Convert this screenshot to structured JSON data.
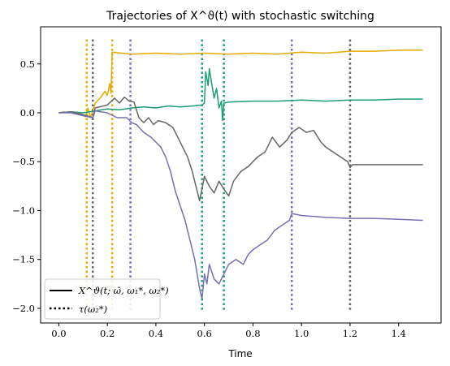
{
  "chart_data": {
    "type": "line",
    "title": "Trajectories of X^ϑ(t) with stochastic switching",
    "xlabel": "Time",
    "ylabel": "",
    "xlim": [
      -0.075,
      1.575
    ],
    "ylim": [
      -2.15,
      0.88
    ],
    "xticks": [
      0.0,
      0.2,
      0.4,
      0.6,
      0.8,
      1.0,
      1.2,
      1.4
    ],
    "xtick_labels": [
      "0.0",
      "0.2",
      "0.4",
      "0.6",
      "0.8",
      "1.0",
      "1.2",
      "1.4"
    ],
    "yticks": [
      0.5,
      0.0,
      -0.5,
      -1.0,
      -1.5,
      -2.0
    ],
    "ytick_labels": [
      "0.5",
      "0.0",
      "−0.5",
      "−1.0",
      "−1.5",
      "−2.0"
    ],
    "grid": false,
    "legend": {
      "placement": "lower-left",
      "entries": [
        {
          "label": "X^ϑ(t; ω̄, ω₁*, ω₂*)",
          "style": "solid"
        },
        {
          "label": "τ(ω₂*)",
          "style": "dotted"
        }
      ]
    },
    "series": [
      {
        "color": "#e6ab02",
        "points": [
          [
            0,
            0
          ],
          [
            0.02,
            0.01
          ],
          [
            0.04,
            0.0
          ],
          [
            0.06,
            0.01
          ],
          [
            0.08,
            0.0
          ],
          [
            0.1,
            -0.02
          ],
          [
            0.11,
            -0.04
          ],
          [
            0.12,
            0.05
          ],
          [
            0.13,
            -0.05
          ],
          [
            0.14,
            0.02
          ],
          [
            0.15,
            0.1
          ],
          [
            0.17,
            0.15
          ],
          [
            0.19,
            0.22
          ],
          [
            0.2,
            0.18
          ],
          [
            0.21,
            0.3
          ],
          [
            0.215,
            0.2
          ],
          [
            0.22,
            0.62
          ],
          [
            0.3,
            0.6
          ],
          [
            0.4,
            0.61
          ],
          [
            0.5,
            0.6
          ],
          [
            0.6,
            0.61
          ],
          [
            0.7,
            0.6
          ],
          [
            0.8,
            0.61
          ],
          [
            0.9,
            0.6
          ],
          [
            1.0,
            0.62
          ],
          [
            1.1,
            0.61
          ],
          [
            1.2,
            0.63
          ],
          [
            1.3,
            0.63
          ],
          [
            1.4,
            0.64
          ],
          [
            1.5,
            0.64
          ]
        ]
      },
      {
        "color": "#1b9e77",
        "points": [
          [
            0,
            0
          ],
          [
            0.05,
            0.01
          ],
          [
            0.1,
            0.0
          ],
          [
            0.15,
            0.02
          ],
          [
            0.2,
            0.04
          ],
          [
            0.25,
            0.03
          ],
          [
            0.3,
            0.05
          ],
          [
            0.35,
            0.06
          ],
          [
            0.4,
            0.05
          ],
          [
            0.45,
            0.07
          ],
          [
            0.5,
            0.06
          ],
          [
            0.55,
            0.07
          ],
          [
            0.59,
            0.08
          ],
          [
            0.6,
            0.1
          ],
          [
            0.605,
            0.42
          ],
          [
            0.615,
            0.28
          ],
          [
            0.62,
            0.45
          ],
          [
            0.63,
            0.3
          ],
          [
            0.64,
            0.15
          ],
          [
            0.65,
            0.25
          ],
          [
            0.66,
            0.05
          ],
          [
            0.67,
            0.12
          ],
          [
            0.675,
            -0.08
          ],
          [
            0.68,
            0.1
          ],
          [
            0.7,
            0.11
          ],
          [
            0.8,
            0.12
          ],
          [
            0.9,
            0.12
          ],
          [
            1.0,
            0.13
          ],
          [
            1.1,
            0.12
          ],
          [
            1.2,
            0.13
          ],
          [
            1.3,
            0.13
          ],
          [
            1.4,
            0.14
          ],
          [
            1.5,
            0.14
          ]
        ]
      },
      {
        "color": "#666666",
        "points": [
          [
            0,
            0
          ],
          [
            0.05,
            0.01
          ],
          [
            0.1,
            -0.02
          ],
          [
            0.14,
            -0.05
          ],
          [
            0.15,
            0.05
          ],
          [
            0.2,
            0.08
          ],
          [
            0.23,
            0.15
          ],
          [
            0.25,
            0.1
          ],
          [
            0.27,
            0.16
          ],
          [
            0.29,
            0.12
          ],
          [
            0.31,
            0.11
          ],
          [
            0.33,
            -0.05
          ],
          [
            0.35,
            -0.1
          ],
          [
            0.37,
            -0.05
          ],
          [
            0.39,
            -0.12
          ],
          [
            0.41,
            -0.08
          ],
          [
            0.44,
            -0.1
          ],
          [
            0.47,
            -0.15
          ],
          [
            0.5,
            -0.3
          ],
          [
            0.53,
            -0.45
          ],
          [
            0.55,
            -0.6
          ],
          [
            0.57,
            -0.8
          ],
          [
            0.58,
            -0.9
          ],
          [
            0.6,
            -0.65
          ],
          [
            0.62,
            -0.75
          ],
          [
            0.64,
            -0.82
          ],
          [
            0.66,
            -0.7
          ],
          [
            0.68,
            -0.78
          ],
          [
            0.7,
            -0.85
          ],
          [
            0.72,
            -0.7
          ],
          [
            0.75,
            -0.6
          ],
          [
            0.78,
            -0.55
          ],
          [
            0.8,
            -0.5
          ],
          [
            0.82,
            -0.45
          ],
          [
            0.85,
            -0.4
          ],
          [
            0.88,
            -0.25
          ],
          [
            0.91,
            -0.35
          ],
          [
            0.94,
            -0.28
          ],
          [
            0.96,
            -0.2
          ],
          [
            0.99,
            -0.15
          ],
          [
            1.02,
            -0.2
          ],
          [
            1.05,
            -0.18
          ],
          [
            1.08,
            -0.3
          ],
          [
            1.1,
            -0.35
          ],
          [
            1.13,
            -0.4
          ],
          [
            1.16,
            -0.45
          ],
          [
            1.19,
            -0.5
          ],
          [
            1.2,
            -0.56
          ],
          [
            1.21,
            -0.53
          ],
          [
            1.3,
            -0.53
          ],
          [
            1.4,
            -0.53
          ],
          [
            1.5,
            -0.53
          ]
        ]
      },
      {
        "color": "#7570b3",
        "points": [
          [
            0,
            0
          ],
          [
            0.05,
            0.0
          ],
          [
            0.1,
            -0.03
          ],
          [
            0.14,
            -0.05
          ],
          [
            0.15,
            0.02
          ],
          [
            0.2,
            0.0
          ],
          [
            0.24,
            -0.05
          ],
          [
            0.28,
            -0.05
          ],
          [
            0.3,
            -0.1
          ],
          [
            0.32,
            -0.12
          ],
          [
            0.35,
            -0.2
          ],
          [
            0.38,
            -0.25
          ],
          [
            0.4,
            -0.3
          ],
          [
            0.42,
            -0.35
          ],
          [
            0.44,
            -0.45
          ],
          [
            0.46,
            -0.6
          ],
          [
            0.48,
            -0.8
          ],
          [
            0.5,
            -0.95
          ],
          [
            0.52,
            -1.1
          ],
          [
            0.54,
            -1.3
          ],
          [
            0.56,
            -1.5
          ],
          [
            0.58,
            -1.8
          ],
          [
            0.59,
            -1.9
          ],
          [
            0.6,
            -1.65
          ],
          [
            0.61,
            -1.75
          ],
          [
            0.62,
            -1.55
          ],
          [
            0.64,
            -1.7
          ],
          [
            0.66,
            -1.75
          ],
          [
            0.68,
            -1.65
          ],
          [
            0.7,
            -1.55
          ],
          [
            0.73,
            -1.5
          ],
          [
            0.76,
            -1.55
          ],
          [
            0.78,
            -1.45
          ],
          [
            0.8,
            -1.4
          ],
          [
            0.83,
            -1.35
          ],
          [
            0.86,
            -1.3
          ],
          [
            0.89,
            -1.2
          ],
          [
            0.92,
            -1.15
          ],
          [
            0.95,
            -1.1
          ],
          [
            0.96,
            -1.03
          ],
          [
            1.0,
            -1.05
          ],
          [
            1.1,
            -1.07
          ],
          [
            1.2,
            -1.08
          ],
          [
            1.3,
            -1.08
          ],
          [
            1.4,
            -1.09
          ],
          [
            1.5,
            -1.1
          ]
        ]
      }
    ],
    "switch_lines": [
      {
        "x": 0.115,
        "color": "#e6ab02"
      },
      {
        "x": 0.14,
        "color": "#666666"
      },
      {
        "x": 0.22,
        "color": "#e6ab02"
      },
      {
        "x": 0.295,
        "color": "#7570b3"
      },
      {
        "x": 0.59,
        "color": "#1b9e77"
      },
      {
        "x": 0.68,
        "color": "#1b9e77"
      },
      {
        "x": 0.96,
        "color": "#7570b3"
      },
      {
        "x": 1.2,
        "color": "#666666"
      }
    ]
  }
}
